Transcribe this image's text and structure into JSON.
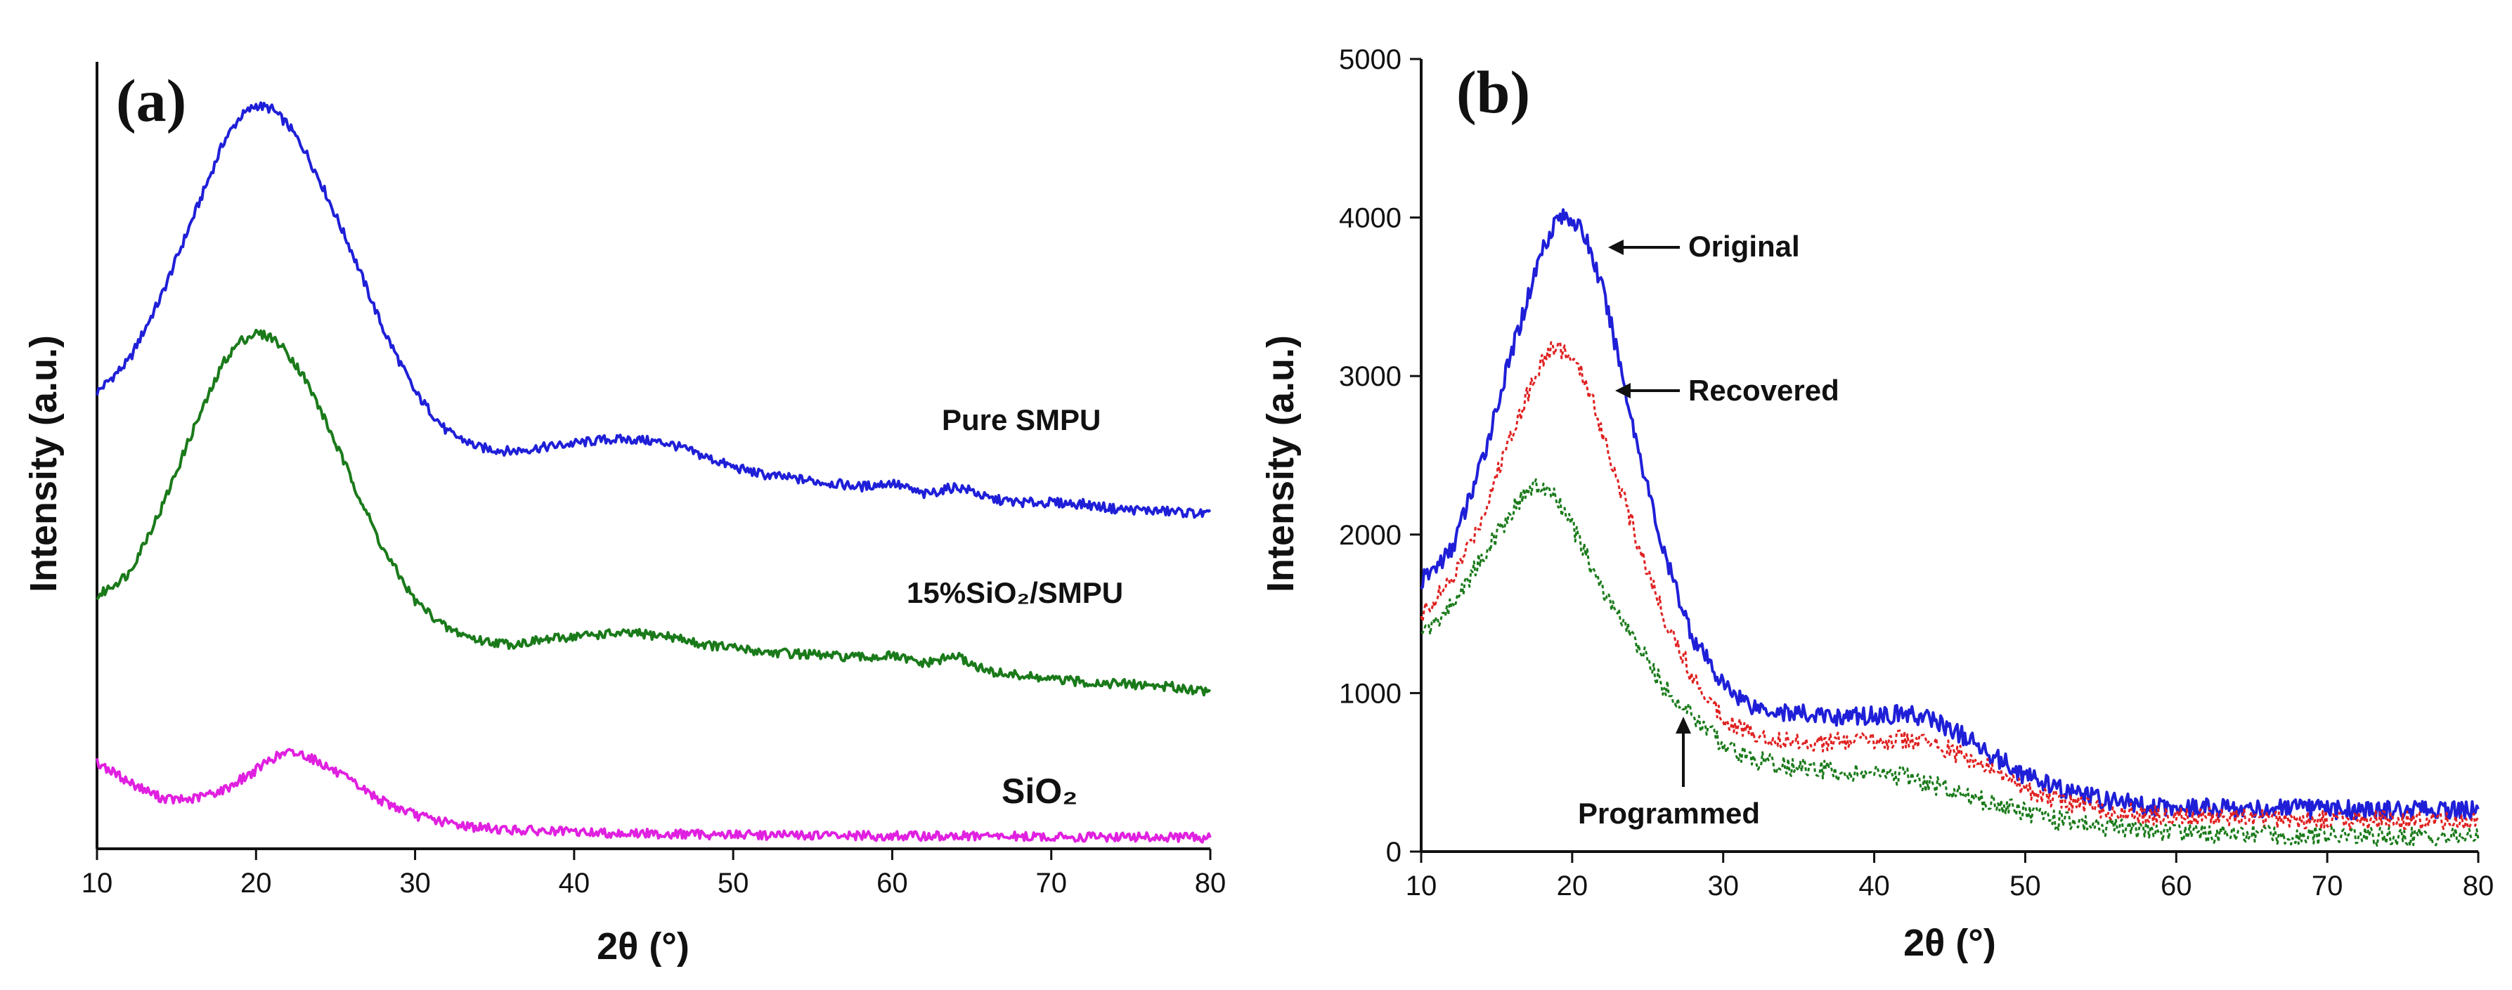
{
  "chart_data": [
    {
      "panel_label": "(a)",
      "type": "line",
      "xlabel": "2θ (°)",
      "ylabel": "Intensity (a.u.)",
      "xlim": [
        10,
        80
      ],
      "ylim": [
        0,
        100
      ],
      "y_ticks_shown": false,
      "x_ticks": [
        10,
        20,
        30,
        40,
        50,
        60,
        70,
        80
      ],
      "series": [
        {
          "name": "Pure SMPU",
          "label_text": "Pure SMPU",
          "color": "#1f1fd8",
          "x": [
            10,
            12,
            14,
            16,
            18,
            19,
            20,
            21,
            22,
            23,
            24,
            26,
            28,
            30,
            32,
            34,
            36,
            38,
            40,
            42,
            44,
            46,
            48,
            50,
            52,
            54,
            56,
            58,
            60,
            62,
            64,
            65,
            66,
            68,
            70,
            72,
            74,
            76,
            78,
            80
          ],
          "y": [
            58,
            62,
            70,
            80,
            90,
            93,
            94.5,
            94,
            92,
            89,
            85,
            76,
            66,
            58,
            53,
            51,
            50.5,
            51,
            51.5,
            52,
            52,
            51.5,
            50,
            48.5,
            47.5,
            47,
            46.5,
            46,
            46.5,
            45,
            46,
            45.5,
            44.5,
            44,
            44,
            43.8,
            43.2,
            43,
            42.8,
            42.5
          ]
        },
        {
          "name": "15%SiO2/SMPU",
          "label_text": "15%SiO₂/SMPU",
          "color": "#1a7a1a",
          "x": [
            10,
            12,
            14,
            16,
            18,
            19,
            20,
            21,
            22,
            23,
            24,
            26,
            28,
            30,
            32,
            34,
            36,
            38,
            40,
            42,
            44,
            46,
            48,
            50,
            52,
            54,
            56,
            58,
            60,
            62,
            64,
            65,
            66,
            68,
            70,
            72,
            74,
            76,
            78,
            80
          ],
          "y": [
            32,
            35,
            43,
            53,
            62,
            64.5,
            65.5,
            65,
            63,
            60,
            56,
            47,
            38,
            31.5,
            28,
            26.5,
            26,
            26.5,
            27,
            27.3,
            27.3,
            27,
            26,
            25.5,
            25,
            24.8,
            24.5,
            24.3,
            24.5,
            23.5,
            24.5,
            23.5,
            22.5,
            22,
            21.5,
            21.2,
            21,
            20.8,
            20.5,
            20
          ]
        },
        {
          "name": "SiO2",
          "label_text": "SiO₂",
          "color": "#e020e0",
          "x": [
            10,
            12,
            14,
            15,
            16,
            18,
            20,
            21,
            22,
            23,
            24,
            26,
            28,
            30,
            32,
            34,
            36,
            40,
            45,
            50,
            55,
            60,
            65,
            70,
            75,
            80
          ],
          "y": [
            11,
            8.5,
            6.5,
            6.2,
            6.3,
            7.5,
            10,
            11.5,
            12.2,
            12,
            11,
            8.5,
            6,
            4.3,
            3.3,
            2.7,
            2.4,
            2.1,
            1.9,
            1.8,
            1.7,
            1.6,
            1.6,
            1.5,
            1.5,
            1.4
          ]
        }
      ]
    },
    {
      "panel_label": "(b)",
      "type": "line",
      "xlabel": "2θ (°)",
      "ylabel": "Intensity (a.u.)",
      "xlim": [
        10,
        80
      ],
      "ylim": [
        0,
        5000
      ],
      "x_ticks": [
        10,
        20,
        30,
        40,
        50,
        60,
        70,
        80
      ],
      "y_ticks": [
        0,
        1000,
        2000,
        3000,
        4000,
        5000
      ],
      "series": [
        {
          "name": "Original",
          "label_text": "Original",
          "color": "#1f1fd8",
          "style": "solid",
          "x": [
            10,
            12,
            14,
            16,
            18,
            19,
            20,
            21,
            22,
            23,
            24,
            26,
            28,
            30,
            32,
            34,
            36,
            38,
            40,
            42,
            44,
            46,
            48,
            50,
            52,
            55,
            58,
            60,
            65,
            70,
            75,
            80
          ],
          "y": [
            1700,
            1900,
            2450,
            3150,
            3800,
            4000,
            4000,
            3850,
            3550,
            3150,
            2700,
            1900,
            1350,
            1050,
            920,
            880,
            860,
            850,
            860,
            870,
            830,
            720,
            600,
            480,
            400,
            330,
            290,
            280,
            270,
            265,
            260,
            260
          ]
        },
        {
          "name": "Recovered",
          "label_text": "Recovered",
          "color": "#e02020",
          "style": "dotted",
          "x": [
            10,
            12,
            14,
            16,
            18,
            19,
            20,
            21,
            22,
            23,
            24,
            26,
            28,
            30,
            32,
            34,
            36,
            38,
            40,
            42,
            44,
            46,
            48,
            50,
            52,
            55,
            58,
            60,
            65,
            70,
            75,
            80
          ],
          "y": [
            1500,
            1700,
            2100,
            2650,
            3100,
            3200,
            3100,
            2950,
            2650,
            2350,
            2050,
            1500,
            1100,
            850,
            740,
            700,
            690,
            690,
            700,
            710,
            680,
            600,
            500,
            400,
            330,
            270,
            230,
            220,
            210,
            200,
            195,
            190
          ]
        },
        {
          "name": "Programmed",
          "label_text": "Programmed",
          "color": "#1a7a1a",
          "style": "dotted",
          "x": [
            10,
            12,
            14,
            16,
            17,
            18,
            19,
            20,
            21,
            22,
            24,
            26,
            28,
            30,
            32,
            34,
            36,
            38,
            40,
            42,
            44,
            46,
            48,
            50,
            52,
            55,
            58,
            60,
            65,
            70,
            75,
            80
          ],
          "y": [
            1350,
            1550,
            1850,
            2150,
            2280,
            2300,
            2220,
            2050,
            1850,
            1650,
            1350,
            1050,
            850,
            680,
            580,
            540,
            520,
            500,
            490,
            470,
            420,
            360,
            300,
            250,
            200,
            160,
            130,
            120,
            110,
            100,
            95,
            90
          ]
        }
      ]
    }
  ]
}
